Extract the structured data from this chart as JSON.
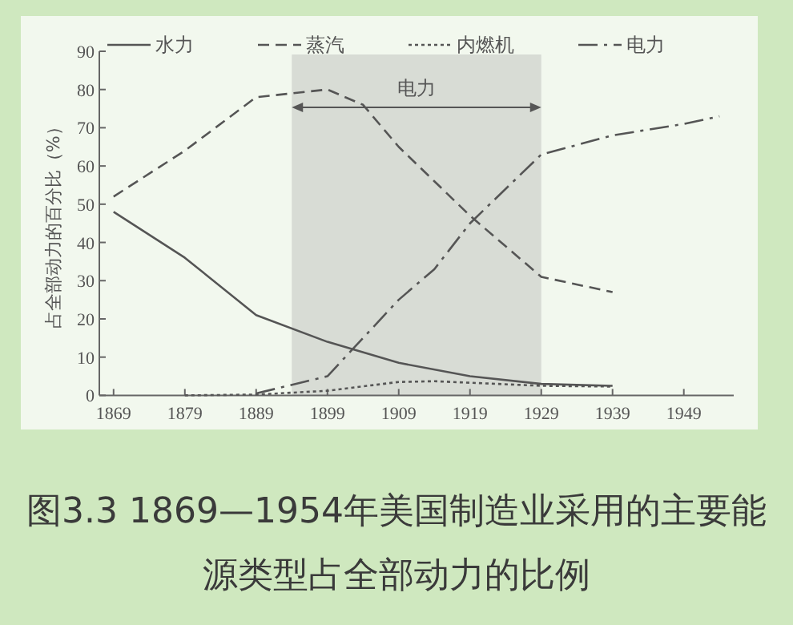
{
  "chart_data": {
    "type": "line",
    "ylabel": "占全部动力的百分比（%）",
    "annotations": [
      "图3.3 1869—1954年美国制造业采用的主要能源类型占全部动力的比例"
    ],
    "xlim": [
      1867,
      1956
    ],
    "ylim": [
      0,
      90
    ],
    "xticks": [
      1869,
      1879,
      1889,
      1899,
      1909,
      1919,
      1929,
      1939,
      1949
    ],
    "yticks": [
      0,
      10,
      20,
      30,
      40,
      50,
      60,
      70,
      80,
      90
    ],
    "grid": false,
    "legend": "top",
    "bands": [
      {
        "axis": "x",
        "from": 1894,
        "to": 1929,
        "label": "电力",
        "color": "#d8dcd5"
      }
    ],
    "series": [
      {
        "name": "水力",
        "color": "#555555",
        "line_style": "solid",
        "x": [
          1869,
          1879,
          1889,
          1899,
          1909,
          1919,
          1929,
          1939
        ],
        "values": [
          48,
          36,
          21,
          14,
          8.5,
          5,
          3,
          2.5
        ]
      },
      {
        "name": "蒸汽",
        "color": "#555555",
        "line_style": "dashed",
        "x": [
          1869,
          1879,
          1889,
          1899,
          1904,
          1909,
          1914,
          1919,
          1929,
          1939
        ],
        "values": [
          52,
          64,
          78,
          80,
          76,
          65,
          56,
          47,
          31,
          27
        ]
      },
      {
        "name": "内燃机",
        "color": "#555555",
        "line_style": "dotted",
        "x": [
          1879,
          1889,
          1899,
          1909,
          1914,
          1919,
          1929,
          1939
        ],
        "values": [
          0,
          0.2,
          1.2,
          3.5,
          3.7,
          3.3,
          2.5,
          2.3
        ]
      },
      {
        "name": "电力",
        "color": "#555555",
        "line_style": "dashdot",
        "x": [
          1889,
          1899,
          1909,
          1914,
          1919,
          1929,
          1939,
          1949,
          1954
        ],
        "values": [
          0.5,
          5,
          25,
          33,
          45,
          63,
          68,
          71,
          73
        ]
      }
    ]
  }
}
